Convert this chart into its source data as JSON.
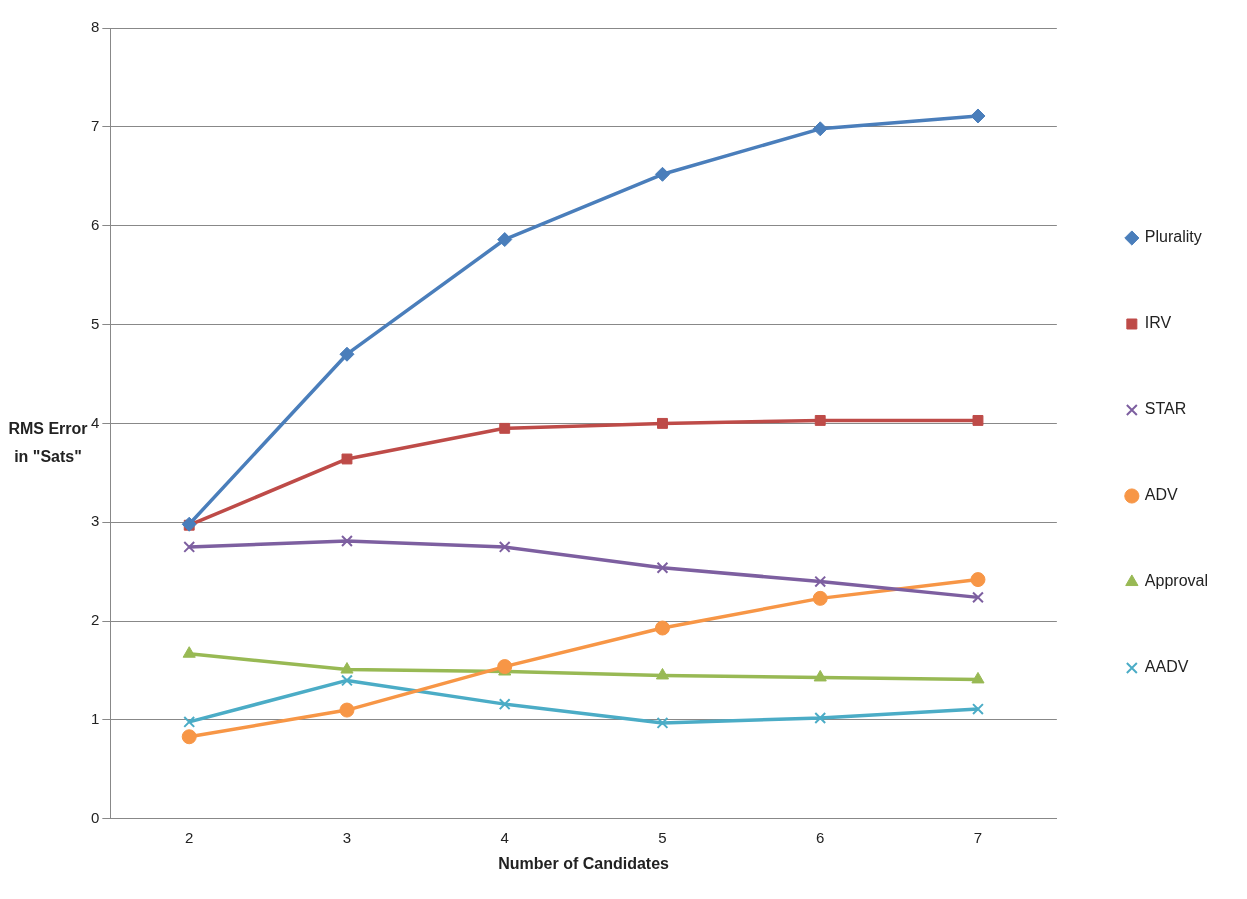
{
  "chart_data": {
    "type": "line",
    "xlabel": "Number of Candidates",
    "ylabel": "RMS Error in \"Sats\"",
    "categories": [
      "2",
      "3",
      "4",
      "5",
      "6",
      "7"
    ],
    "ylim": [
      0,
      8
    ],
    "yticks": [
      0,
      1,
      2,
      3,
      4,
      5,
      6,
      7,
      8
    ],
    "grid": "y",
    "legend": "right",
    "line_style": "solid",
    "series": [
      {
        "name": "Plurality",
        "color": "#4a7ebb",
        "marker": "diamond",
        "values": [
          2.98,
          4.7,
          5.86,
          6.52,
          6.98,
          7.11
        ]
      },
      {
        "name": "IRV",
        "color": "#be4b48",
        "marker": "square",
        "values": [
          2.97,
          3.64,
          3.95,
          4.0,
          4.03,
          4.03
        ]
      },
      {
        "name": "STAR",
        "color": "#7d5fa0",
        "marker": "cross",
        "values": [
          2.75,
          2.81,
          2.75,
          2.54,
          2.4,
          2.24
        ]
      },
      {
        "name": "ADV",
        "color": "#f79646",
        "marker": "circle",
        "values": [
          0.83,
          1.1,
          1.54,
          1.93,
          2.23,
          2.42
        ]
      },
      {
        "name": "Approval",
        "color": "#98b954",
        "marker": "triangle",
        "values": [
          1.67,
          1.51,
          1.49,
          1.45,
          1.43,
          1.41
        ]
      },
      {
        "name": "AADV",
        "color": "#4bacc6",
        "marker": "cross",
        "values": [
          0.98,
          1.4,
          1.16,
          0.97,
          1.02,
          1.11
        ]
      }
    ]
  }
}
